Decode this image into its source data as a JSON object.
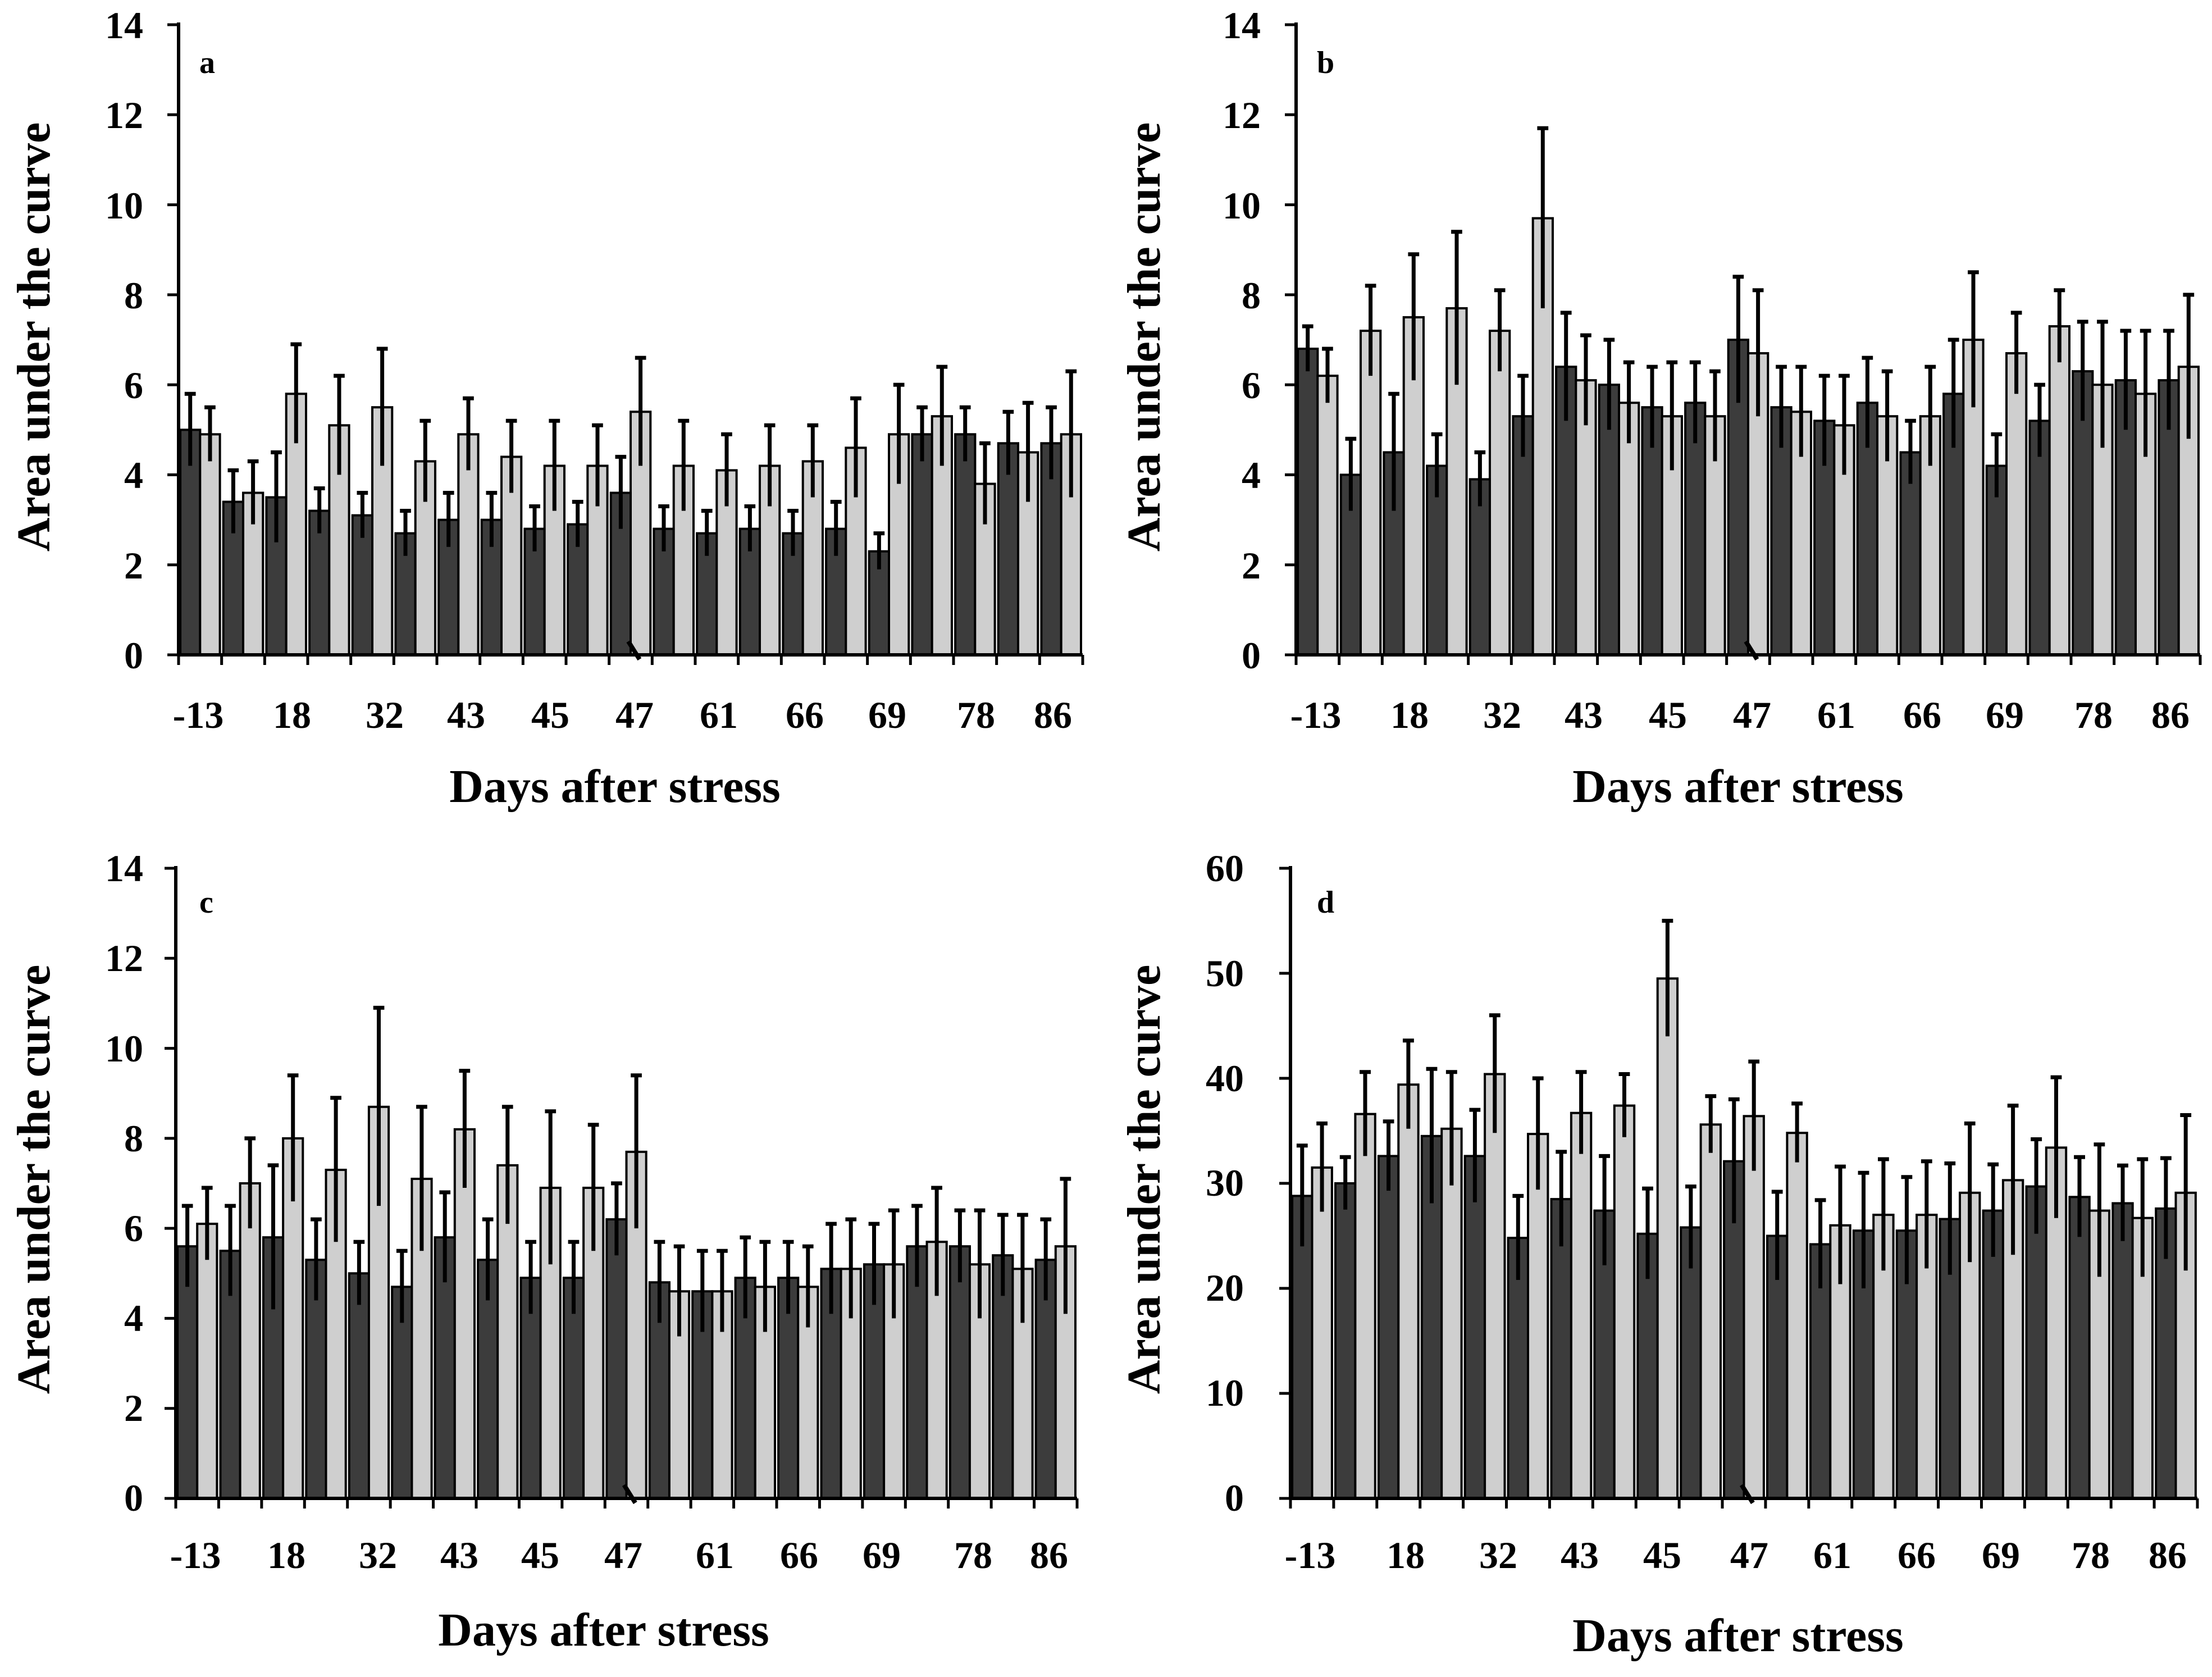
{
  "colors": {
    "dark_bar": "#3c3c3c",
    "light_bar": "#cfcfcf",
    "axis": "#000000",
    "background": "#ffffff"
  },
  "chart_data": [
    {
      "panel": "a",
      "type": "bar",
      "xlabel": "Days after stress",
      "ylabel": "Area under the curve",
      "ylim": [
        0,
        14
      ],
      "yticks": [
        0,
        2,
        4,
        6,
        8,
        10,
        12,
        14
      ],
      "xtick_labels": [
        "-13",
        "18",
        "32",
        "43",
        "45",
        "47",
        "61",
        "66",
        "69",
        "78",
        "86"
      ],
      "axis_break_after_group": 11,
      "legend": "none",
      "grid": false,
      "series": [
        {
          "values": [
            5.0,
            3.4,
            3.5,
            3.2,
            3.1,
            2.7,
            3.0,
            3.0,
            2.8,
            2.9,
            3.6,
            2.8,
            2.7,
            2.8,
            2.7,
            2.8,
            2.3,
            4.9,
            4.9,
            4.7,
            4.7
          ],
          "errors": [
            0.8,
            0.7,
            1.0,
            0.5,
            0.5,
            0.5,
            0.6,
            0.6,
            0.5,
            0.5,
            0.8,
            0.5,
            0.5,
            0.5,
            0.5,
            0.6,
            0.4,
            0.6,
            0.6,
            0.7,
            0.8
          ]
        },
        {
          "values": [
            4.9,
            3.6,
            5.8,
            5.1,
            5.5,
            4.3,
            4.9,
            4.4,
            4.2,
            4.2,
            5.4,
            4.2,
            4.1,
            4.2,
            4.3,
            4.6,
            4.9,
            5.3,
            3.8,
            4.5,
            4.9
          ],
          "errors": [
            0.6,
            0.7,
            1.1,
            1.1,
            1.3,
            0.9,
            0.8,
            0.8,
            1.0,
            0.9,
            1.2,
            1.0,
            0.8,
            0.9,
            0.8,
            1.1,
            1.1,
            1.1,
            0.9,
            1.1,
            1.4
          ]
        }
      ]
    },
    {
      "panel": "b",
      "type": "bar",
      "xlabel": "Days after stress",
      "ylabel": "Area under the curve",
      "ylim": [
        0,
        14
      ],
      "yticks": [
        0,
        2,
        4,
        6,
        8,
        10,
        12,
        14
      ],
      "xtick_labels": [
        "-13",
        "18",
        "32",
        "43",
        "45",
        "47",
        "61",
        "66",
        "69",
        "78",
        "86"
      ],
      "axis_break_after_group": 11,
      "legend": "none",
      "grid": false,
      "series": [
        {
          "values": [
            6.8,
            4.0,
            4.5,
            4.2,
            3.9,
            5.3,
            6.4,
            6.0,
            5.5,
            5.6,
            7.0,
            5.5,
            5.2,
            5.6,
            4.5,
            5.8,
            4.2,
            5.2,
            6.3,
            6.1,
            6.1
          ],
          "errors": [
            0.5,
            0.8,
            1.3,
            0.7,
            0.6,
            0.9,
            1.2,
            1.0,
            0.9,
            0.9,
            1.4,
            0.9,
            1.0,
            1.0,
            0.7,
            1.2,
            0.7,
            0.8,
            1.1,
            1.1,
            1.1
          ]
        },
        {
          "values": [
            6.2,
            7.2,
            7.5,
            7.7,
            7.2,
            9.7,
            6.1,
            5.6,
            5.3,
            5.3,
            6.7,
            5.4,
            5.1,
            5.3,
            5.3,
            7.0,
            6.7,
            7.3,
            6.0,
            5.8,
            6.4
          ],
          "errors": [
            0.6,
            1.0,
            1.4,
            1.7,
            0.9,
            2.0,
            1.0,
            0.9,
            1.2,
            1.0,
            1.4,
            1.0,
            1.1,
            1.0,
            1.1,
            1.5,
            0.9,
            0.8,
            1.4,
            1.4,
            1.6
          ]
        }
      ]
    },
    {
      "panel": "c",
      "type": "bar",
      "xlabel": "Days after stress",
      "ylabel": "Area under the curve",
      "ylim": [
        0,
        14
      ],
      "yticks": [
        0,
        2,
        4,
        6,
        8,
        10,
        12,
        14
      ],
      "xtick_labels": [
        "-13",
        "18",
        "32",
        "43",
        "45",
        "47",
        "61",
        "66",
        "69",
        "78",
        "86"
      ],
      "axis_break_after_group": 11,
      "legend": "none",
      "grid": false,
      "series": [
        {
          "values": [
            5.6,
            5.5,
            5.8,
            5.3,
            5.0,
            4.7,
            5.8,
            5.3,
            4.9,
            4.9,
            6.2,
            4.8,
            4.6,
            4.9,
            4.9,
            5.1,
            5.2,
            5.6,
            5.6,
            5.4,
            5.3
          ],
          "errors": [
            0.9,
            1.0,
            1.6,
            0.9,
            0.7,
            0.8,
            1.0,
            0.9,
            0.8,
            0.8,
            0.8,
            0.9,
            0.9,
            0.9,
            0.8,
            1.0,
            0.9,
            0.9,
            0.8,
            0.9,
            0.9
          ]
        },
        {
          "values": [
            6.1,
            7.0,
            8.0,
            7.3,
            8.7,
            7.1,
            8.2,
            7.4,
            6.9,
            6.9,
            7.7,
            4.6,
            4.6,
            4.7,
            4.7,
            5.1,
            5.2,
            5.7,
            5.2,
            5.1,
            5.6
          ],
          "errors": [
            0.8,
            1.0,
            1.4,
            1.6,
            2.2,
            1.6,
            1.3,
            1.3,
            1.7,
            1.4,
            1.7,
            1.0,
            0.9,
            1.0,
            0.9,
            1.1,
            1.2,
            1.2,
            1.2,
            1.2,
            1.5
          ]
        }
      ]
    },
    {
      "panel": "d",
      "type": "bar",
      "xlabel": "Days after stress",
      "ylabel": "Area under the curve",
      "ylim": [
        0,
        60
      ],
      "yticks": [
        0,
        10,
        20,
        30,
        40,
        50,
        60
      ],
      "xtick_labels": [
        "-13",
        "18",
        "32",
        "43",
        "45",
        "47",
        "61",
        "66",
        "69",
        "78",
        "86"
      ],
      "axis_break_after_group": 11,
      "legend": "none",
      "grid": false,
      "series": [
        {
          "values": [
            28.8,
            30.0,
            32.6,
            34.5,
            32.6,
            24.8,
            28.5,
            27.4,
            25.2,
            25.8,
            32.1,
            25.0,
            24.2,
            25.5,
            25.5,
            26.6,
            27.4,
            29.7,
            28.7,
            28.1,
            27.6
          ],
          "errors": [
            4.8,
            2.5,
            3.3,
            6.4,
            4.4,
            4.0,
            4.5,
            5.2,
            4.3,
            3.9,
            5.9,
            4.2,
            4.2,
            5.5,
            5.1,
            5.3,
            4.4,
            4.5,
            3.8,
            3.6,
            4.8
          ]
        },
        {
          "values": [
            31.5,
            36.6,
            39.4,
            35.2,
            40.4,
            34.7,
            36.7,
            37.4,
            49.5,
            35.6,
            36.4,
            34.8,
            26.0,
            27.0,
            27.0,
            29.1,
            30.3,
            33.4,
            27.4,
            26.7,
            29.1
          ],
          "errors": [
            4.2,
            4.0,
            4.2,
            5.4,
            5.6,
            5.3,
            3.9,
            3.0,
            5.5,
            2.7,
            5.2,
            2.8,
            5.6,
            5.3,
            5.1,
            6.6,
            7.1,
            6.7,
            6.3,
            5.6,
            7.4
          ]
        }
      ]
    }
  ]
}
